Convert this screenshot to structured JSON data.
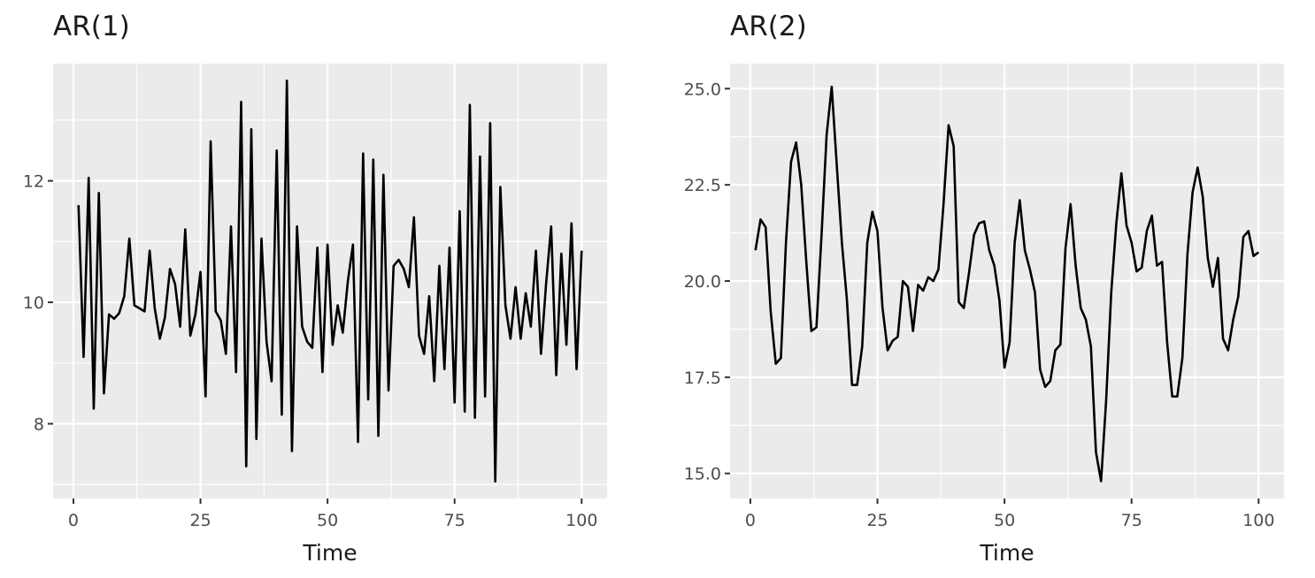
{
  "chart_data": [
    {
      "type": "line",
      "title": "AR(1)",
      "xlabel": "Time",
      "ylabel": "",
      "xlim": [
        -4,
        105
      ],
      "ylim": [
        6.77,
        13.93
      ],
      "x_ticks": [
        0,
        25,
        50,
        75,
        100
      ],
      "y_ticks": [
        8,
        10,
        12
      ],
      "grid": true,
      "series": [
        {
          "x": [
            1,
            2,
            3,
            4,
            5,
            6,
            7,
            8,
            9,
            10,
            11,
            12,
            13,
            14,
            15,
            16,
            17,
            18,
            19,
            20,
            21,
            22,
            23,
            24,
            25,
            26,
            27,
            28,
            29,
            30,
            31,
            32,
            33,
            34,
            35,
            36,
            37,
            38,
            39,
            40,
            41,
            42,
            43,
            44,
            45,
            46,
            47,
            48,
            49,
            50,
            51,
            52,
            53,
            54,
            55,
            56,
            57,
            58,
            59,
            60,
            61,
            62,
            63,
            64,
            65,
            66,
            67,
            68,
            69,
            70,
            71,
            72,
            73,
            74,
            75,
            76,
            77,
            78,
            79,
            80,
            81,
            82,
            83,
            84,
            85,
            86,
            87,
            88,
            89,
            90,
            91,
            92,
            93,
            94,
            95,
            96,
            97,
            98,
            99,
            100
          ],
          "values": [
            11.6,
            9.1,
            12.05,
            8.25,
            11.8,
            8.5,
            9.8,
            9.73,
            9.82,
            10.1,
            11.05,
            9.95,
            9.9,
            9.85,
            10.85,
            9.9,
            9.4,
            9.75,
            10.55,
            10.3,
            9.6,
            11.2,
            9.45,
            9.8,
            10.5,
            8.45,
            12.65,
            9.85,
            9.7,
            9.15,
            11.25,
            8.85,
            13.3,
            7.3,
            12.85,
            7.75,
            11.05,
            9.35,
            8.7,
            12.5,
            8.15,
            13.65,
            7.55,
            11.25,
            9.6,
            9.35,
            9.25,
            10.9,
            8.85,
            10.95,
            9.3,
            9.95,
            9.5,
            10.35,
            10.95,
            7.7,
            12.45,
            8.4,
            12.35,
            7.8,
            12.1,
            8.55,
            10.6,
            10.7,
            10.55,
            10.25,
            11.4,
            9.45,
            9.15,
            10.1,
            8.7,
            10.6,
            8.9,
            10.9,
            8.35,
            11.5,
            8.2,
            13.25,
            8.1,
            12.4,
            8.45,
            12.95,
            7.05,
            11.9,
            9.95,
            9.4,
            10.25,
            9.4,
            10.15,
            9.6,
            10.85,
            9.15,
            10.3,
            11.25,
            8.8,
            10.8,
            9.3,
            11.3,
            8.9,
            10.85
          ]
        }
      ]
    },
    {
      "type": "line",
      "title": "AR(2)",
      "xlabel": "Time",
      "ylabel": "",
      "xlim": [
        -4,
        105
      ],
      "ylim": [
        14.35,
        25.65
      ],
      "x_ticks": [
        0,
        25,
        50,
        75,
        100
      ],
      "y_ticks": [
        15.0,
        17.5,
        20.0,
        22.5,
        25.0
      ],
      "y_tick_labels": [
        "15.0",
        "17.5",
        "20.0",
        "22.5",
        "25.0"
      ],
      "grid": true,
      "series": [
        {
          "x": [
            1,
            2,
            3,
            4,
            5,
            6,
            7,
            8,
            9,
            10,
            11,
            12,
            13,
            14,
            15,
            16,
            17,
            18,
            19,
            20,
            21,
            22,
            23,
            24,
            25,
            26,
            27,
            28,
            29,
            30,
            31,
            32,
            33,
            34,
            35,
            36,
            37,
            38,
            39,
            40,
            41,
            42,
            43,
            44,
            45,
            46,
            47,
            48,
            49,
            50,
            51,
            52,
            53,
            54,
            55,
            56,
            57,
            58,
            59,
            60,
            61,
            62,
            63,
            64,
            65,
            66,
            67,
            68,
            69,
            70,
            71,
            72,
            73,
            74,
            75,
            76,
            77,
            78,
            79,
            80,
            81,
            82,
            83,
            84,
            85,
            86,
            87,
            88,
            89,
            90,
            91,
            92,
            93,
            94,
            95,
            96,
            97,
            98,
            99,
            100
          ],
          "values": [
            20.8,
            21.6,
            21.4,
            19.2,
            17.85,
            18.0,
            21.0,
            23.1,
            23.6,
            22.5,
            20.5,
            18.7,
            18.8,
            21.2,
            23.8,
            25.05,
            23.0,
            21.0,
            19.5,
            17.3,
            17.3,
            18.3,
            21.0,
            21.8,
            21.3,
            19.3,
            18.2,
            18.45,
            18.55,
            20.0,
            19.85,
            18.7,
            19.9,
            19.75,
            20.1,
            20.0,
            20.3,
            22.0,
            24.05,
            23.5,
            19.45,
            19.3,
            20.2,
            21.2,
            21.5,
            21.55,
            20.8,
            20.4,
            19.5,
            17.75,
            18.4,
            21.0,
            22.1,
            20.8,
            20.3,
            19.7,
            17.7,
            17.25,
            17.4,
            18.2,
            18.35,
            20.85,
            22.0,
            20.4,
            19.3,
            19.0,
            18.3,
            15.55,
            14.8,
            16.9,
            19.7,
            21.5,
            22.8,
            21.45,
            21.0,
            20.25,
            20.35,
            21.3,
            21.7,
            20.4,
            20.5,
            18.4,
            17.0,
            17.0,
            18.0,
            20.7,
            22.3,
            22.95,
            22.2,
            20.6,
            19.85,
            20.6,
            18.5,
            18.2,
            19.0,
            19.6,
            21.15,
            21.3,
            20.65,
            20.75
          ]
        }
      ]
    }
  ]
}
